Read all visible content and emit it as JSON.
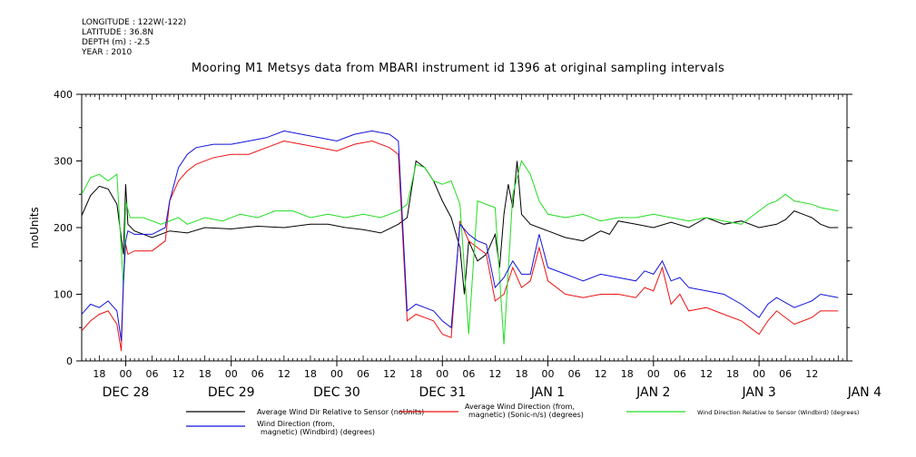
{
  "header": {
    "meta_lines": [
      "LONGITUDE : 122W(-122)",
      "LATITUDE : 36.8N",
      "DEPTH (m) : -2.5",
      "YEAR : 2010"
    ],
    "title": "Mooring M1 Metsys data from MBARI instrument id 1396 at original sampling intervals"
  },
  "chart_data": {
    "type": "line",
    "title": "Mooring M1 Metsys data from MBARI instrument id 1396 at original sampling intervals",
    "xlabel": "",
    "ylabel": "noUnits",
    "ylim": [
      0,
      400
    ],
    "yticks": [
      0,
      100,
      200,
      300,
      400
    ],
    "xlim_hours": [
      -10,
      164
    ],
    "x_hour_labels": [
      "18",
      "00",
      "06",
      "12",
      "18",
      "00",
      "06",
      "12",
      "18",
      "00",
      "06",
      "12",
      "18",
      "00",
      "06",
      "12",
      "18",
      "00",
      "06",
      "12",
      "18",
      "00",
      "06",
      "12",
      "18",
      "00",
      "06",
      "12"
    ],
    "x_day_labels": [
      "DEC 28",
      "DEC 29",
      "DEC 30",
      "DEC 31",
      "JAN  1",
      "JAN  2",
      "JAN  3",
      "JAN  4"
    ],
    "grid": false,
    "legend_placement": "bottom",
    "series": [
      {
        "name": "Average Wind Dir Relative to Sensor (noUnits)",
        "color": "#000000",
        "points": [
          [
            -10,
            218
          ],
          [
            -8,
            248
          ],
          [
            -6,
            262
          ],
          [
            -4,
            258
          ],
          [
            -2,
            235
          ],
          [
            -0.5,
            160
          ],
          [
            0,
            265
          ],
          [
            0.5,
            205
          ],
          [
            2,
            195
          ],
          [
            6,
            185
          ],
          [
            10,
            195
          ],
          [
            14,
            192
          ],
          [
            18,
            200
          ],
          [
            24,
            198
          ],
          [
            30,
            202
          ],
          [
            36,
            200
          ],
          [
            42,
            205
          ],
          [
            46,
            205
          ],
          [
            50,
            200
          ],
          [
            54,
            197
          ],
          [
            58,
            192
          ],
          [
            62,
            205
          ],
          [
            64,
            215
          ],
          [
            66,
            300
          ],
          [
            68,
            290
          ],
          [
            70,
            270
          ],
          [
            72,
            240
          ],
          [
            74,
            215
          ],
          [
            76,
            170
          ],
          [
            77,
            100
          ],
          [
            78,
            180
          ],
          [
            80,
            150
          ],
          [
            82,
            160
          ],
          [
            84,
            190
          ],
          [
            85,
            140
          ],
          [
            86,
            220
          ],
          [
            87,
            265
          ],
          [
            88,
            230
          ],
          [
            89,
            300
          ],
          [
            90,
            220
          ],
          [
            92,
            205
          ],
          [
            96,
            195
          ],
          [
            100,
            185
          ],
          [
            104,
            180
          ],
          [
            108,
            195
          ],
          [
            110,
            190
          ],
          [
            112,
            210
          ],
          [
            116,
            205
          ],
          [
            120,
            200
          ],
          [
            124,
            208
          ],
          [
            128,
            200
          ],
          [
            132,
            215
          ],
          [
            136,
            205
          ],
          [
            140,
            210
          ],
          [
            144,
            200
          ],
          [
            148,
            205
          ],
          [
            150,
            212
          ],
          [
            152,
            225
          ],
          [
            154,
            220
          ],
          [
            156,
            215
          ],
          [
            158,
            205
          ],
          [
            160,
            200
          ],
          [
            162,
            200
          ]
        ]
      },
      {
        "name": "Average Wind Direction (from, magnetic) (Sonic-n/s) (degrees)",
        "color": "#ee1111",
        "points": [
          [
            -10,
            45
          ],
          [
            -8,
            60
          ],
          [
            -6,
            70
          ],
          [
            -4,
            75
          ],
          [
            -2,
            55
          ],
          [
            -1,
            15
          ],
          [
            -0.5,
            120
          ],
          [
            0,
            175
          ],
          [
            0.5,
            160
          ],
          [
            2,
            165
          ],
          [
            6,
            165
          ],
          [
            9,
            180
          ],
          [
            10,
            240
          ],
          [
            12,
            270
          ],
          [
            14,
            285
          ],
          [
            16,
            295
          ],
          [
            20,
            305
          ],
          [
            24,
            310
          ],
          [
            28,
            310
          ],
          [
            30,
            315
          ],
          [
            32,
            320
          ],
          [
            36,
            330
          ],
          [
            40,
            325
          ],
          [
            44,
            320
          ],
          [
            48,
            315
          ],
          [
            52,
            325
          ],
          [
            56,
            330
          ],
          [
            60,
            320
          ],
          [
            62,
            310
          ],
          [
            64,
            60
          ],
          [
            66,
            70
          ],
          [
            68,
            65
          ],
          [
            70,
            60
          ],
          [
            72,
            40
          ],
          [
            74,
            35
          ],
          [
            76,
            210
          ],
          [
            78,
            180
          ],
          [
            80,
            170
          ],
          [
            82,
            160
          ],
          [
            84,
            90
          ],
          [
            86,
            100
          ],
          [
            88,
            140
          ],
          [
            90,
            110
          ],
          [
            92,
            120
          ],
          [
            94,
            170
          ],
          [
            96,
            120
          ],
          [
            100,
            100
          ],
          [
            104,
            95
          ],
          [
            108,
            100
          ],
          [
            112,
            100
          ],
          [
            116,
            95
          ],
          [
            118,
            110
          ],
          [
            120,
            105
          ],
          [
            122,
            140
          ],
          [
            124,
            85
          ],
          [
            126,
            100
          ],
          [
            128,
            75
          ],
          [
            132,
            80
          ],
          [
            136,
            70
          ],
          [
            140,
            60
          ],
          [
            142,
            50
          ],
          [
            144,
            40
          ],
          [
            146,
            60
          ],
          [
            148,
            75
          ],
          [
            152,
            55
          ],
          [
            156,
            65
          ],
          [
            158,
            75
          ],
          [
            162,
            75
          ]
        ]
      },
      {
        "name": "Wind Direction Relative to Sensor (Windbird) (degrees)",
        "color": "#22dd22",
        "points": [
          [
            -10,
            250
          ],
          [
            -8,
            275
          ],
          [
            -6,
            280
          ],
          [
            -4,
            270
          ],
          [
            -2,
            280
          ],
          [
            -0.5,
            110
          ],
          [
            0,
            240
          ],
          [
            1,
            215
          ],
          [
            4,
            215
          ],
          [
            8,
            205
          ],
          [
            12,
            215
          ],
          [
            14,
            205
          ],
          [
            18,
            215
          ],
          [
            22,
            210
          ],
          [
            26,
            220
          ],
          [
            30,
            215
          ],
          [
            34,
            225
          ],
          [
            38,
            225
          ],
          [
            42,
            215
          ],
          [
            46,
            220
          ],
          [
            50,
            215
          ],
          [
            54,
            220
          ],
          [
            58,
            215
          ],
          [
            62,
            225
          ],
          [
            64,
            235
          ],
          [
            66,
            295
          ],
          [
            68,
            290
          ],
          [
            70,
            270
          ],
          [
            72,
            265
          ],
          [
            74,
            270
          ],
          [
            76,
            235
          ],
          [
            78,
            40
          ],
          [
            80,
            240
          ],
          [
            84,
            230
          ],
          [
            86,
            25
          ],
          [
            88,
            250
          ],
          [
            90,
            300
          ],
          [
            92,
            280
          ],
          [
            94,
            240
          ],
          [
            96,
            220
          ],
          [
            100,
            215
          ],
          [
            104,
            220
          ],
          [
            108,
            210
          ],
          [
            112,
            215
          ],
          [
            116,
            215
          ],
          [
            120,
            220
          ],
          [
            124,
            215
          ],
          [
            128,
            210
          ],
          [
            132,
            215
          ],
          [
            136,
            210
          ],
          [
            140,
            205
          ],
          [
            144,
            225
          ],
          [
            146,
            235
          ],
          [
            148,
            240
          ],
          [
            150,
            250
          ],
          [
            152,
            240
          ],
          [
            156,
            235
          ],
          [
            158,
            230
          ],
          [
            162,
            225
          ]
        ]
      },
      {
        "name": "Wind Direction (from, magnetic) (Windbird) (degrees)",
        "color": "#1111dd",
        "points": [
          [
            -10,
            70
          ],
          [
            -8,
            85
          ],
          [
            -6,
            80
          ],
          [
            -4,
            90
          ],
          [
            -2,
            75
          ],
          [
            -1,
            30
          ],
          [
            -0.5,
            120
          ],
          [
            0,
            180
          ],
          [
            0.5,
            195
          ],
          [
            2,
            190
          ],
          [
            6,
            190
          ],
          [
            9,
            200
          ],
          [
            10,
            240
          ],
          [
            12,
            290
          ],
          [
            14,
            310
          ],
          [
            16,
            320
          ],
          [
            20,
            325
          ],
          [
            24,
            325
          ],
          [
            28,
            330
          ],
          [
            32,
            335
          ],
          [
            36,
            345
          ],
          [
            40,
            340
          ],
          [
            44,
            335
          ],
          [
            48,
            330
          ],
          [
            52,
            340
          ],
          [
            56,
            345
          ],
          [
            60,
            340
          ],
          [
            62,
            330
          ],
          [
            64,
            75
          ],
          [
            66,
            85
          ],
          [
            68,
            80
          ],
          [
            70,
            75
          ],
          [
            72,
            60
          ],
          [
            74,
            50
          ],
          [
            76,
            205
          ],
          [
            78,
            190
          ],
          [
            80,
            180
          ],
          [
            82,
            175
          ],
          [
            84,
            110
          ],
          [
            86,
            125
          ],
          [
            88,
            150
          ],
          [
            90,
            130
          ],
          [
            92,
            130
          ],
          [
            94,
            190
          ],
          [
            96,
            140
          ],
          [
            100,
            130
          ],
          [
            104,
            120
          ],
          [
            108,
            130
          ],
          [
            112,
            125
          ],
          [
            116,
            120
          ],
          [
            118,
            135
          ],
          [
            120,
            130
          ],
          [
            122,
            150
          ],
          [
            124,
            120
          ],
          [
            126,
            125
          ],
          [
            128,
            110
          ],
          [
            132,
            105
          ],
          [
            136,
            100
          ],
          [
            140,
            85
          ],
          [
            142,
            75
          ],
          [
            144,
            65
          ],
          [
            146,
            85
          ],
          [
            148,
            95
          ],
          [
            152,
            80
          ],
          [
            156,
            90
          ],
          [
            158,
            100
          ],
          [
            162,
            95
          ]
        ]
      }
    ]
  }
}
